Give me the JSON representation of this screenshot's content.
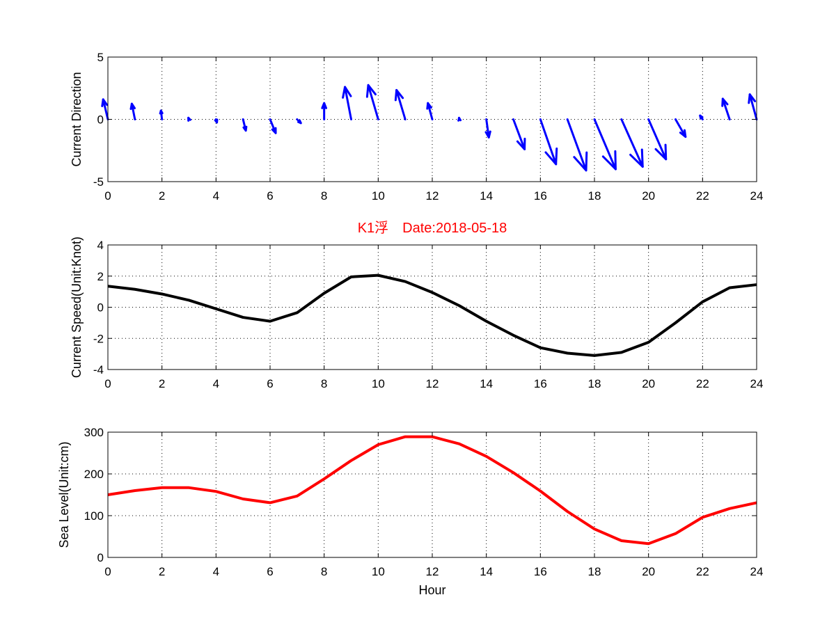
{
  "colors": {
    "arrows": "#0000ff",
    "speed_line": "#000000",
    "sea_line": "#ff0000",
    "title": "#ff0000"
  },
  "chart_data": [
    {
      "type": "quiver",
      "title": "",
      "xlabel": "",
      "ylabel": "Current Direction",
      "xlim": [
        0,
        24
      ],
      "ylim": [
        -5,
        5
      ],
      "xticks": [
        0,
        2,
        4,
        6,
        8,
        10,
        12,
        14,
        16,
        18,
        20,
        22,
        24
      ],
      "yticks": [
        -5,
        0,
        5
      ],
      "x": [
        0,
        1,
        2,
        3,
        4,
        5,
        6,
        7,
        8,
        9,
        10,
        11,
        12,
        13,
        14,
        15,
        16,
        17,
        18,
        19,
        20,
        21,
        22,
        23,
        24
      ],
      "u": [
        -0.38,
        -0.25,
        -0.08,
        -0.05,
        0.07,
        0.22,
        0.45,
        0.3,
        0.0,
        -0.5,
        -0.8,
        -0.7,
        -0.35,
        -0.02,
        0.2,
        0.9,
        1.25,
        1.5,
        1.7,
        1.7,
        1.4,
        0.8,
        -0.2,
        -0.55,
        -0.55
      ],
      "v": [
        1.6,
        1.25,
        0.7,
        0.12,
        -0.25,
        -0.9,
        -1.1,
        -0.3,
        1.3,
        2.6,
        2.75,
        2.35,
        1.3,
        0.12,
        -1.45,
        -2.4,
        -3.6,
        -4.1,
        -4.0,
        -3.8,
        -3.2,
        -1.4,
        0.3,
        1.65,
        2.0
      ]
    },
    {
      "type": "line",
      "title": "K1浮　Date:2018-05-18",
      "xlabel": "",
      "ylabel": "Current Speed(Unit:Knot)",
      "xlim": [
        0,
        24
      ],
      "ylim": [
        -4,
        4
      ],
      "xticks": [
        0,
        2,
        4,
        6,
        8,
        10,
        12,
        14,
        16,
        18,
        20,
        22,
        24
      ],
      "yticks": [
        -4,
        -2,
        0,
        2,
        4
      ],
      "x": [
        0,
        1,
        2,
        3,
        4,
        5,
        6,
        7,
        8,
        9,
        10,
        11,
        12,
        13,
        14,
        15,
        16,
        17,
        18,
        19,
        20,
        21,
        22,
        23,
        24
      ],
      "values": [
        1.35,
        1.15,
        0.85,
        0.45,
        -0.1,
        -0.65,
        -0.9,
        -0.35,
        0.9,
        1.95,
        2.05,
        1.65,
        0.95,
        0.1,
        -0.9,
        -1.8,
        -2.6,
        -2.95,
        -3.1,
        -2.9,
        -2.25,
        -1.0,
        0.35,
        1.25,
        1.45
      ]
    },
    {
      "type": "line",
      "title": "",
      "xlabel": "Hour",
      "ylabel": "Sea Level(Unit:cm)",
      "xlim": [
        0,
        24
      ],
      "ylim": [
        0,
        300
      ],
      "xticks": [
        0,
        2,
        4,
        6,
        8,
        10,
        12,
        14,
        16,
        18,
        20,
        22,
        24
      ],
      "yticks": [
        0,
        100,
        200,
        300
      ],
      "x": [
        0,
        1,
        2,
        3,
        4,
        5,
        6,
        7,
        8,
        9,
        10,
        11,
        12,
        13,
        14,
        15,
        16,
        17,
        18,
        19,
        20,
        21,
        22,
        23,
        24
      ],
      "values": [
        150,
        160,
        167,
        167,
        158,
        140,
        131,
        147,
        188,
        232,
        270,
        289,
        289,
        272,
        242,
        203,
        159,
        110,
        68,
        40,
        33,
        57,
        96,
        117,
        131
      ]
    }
  ]
}
